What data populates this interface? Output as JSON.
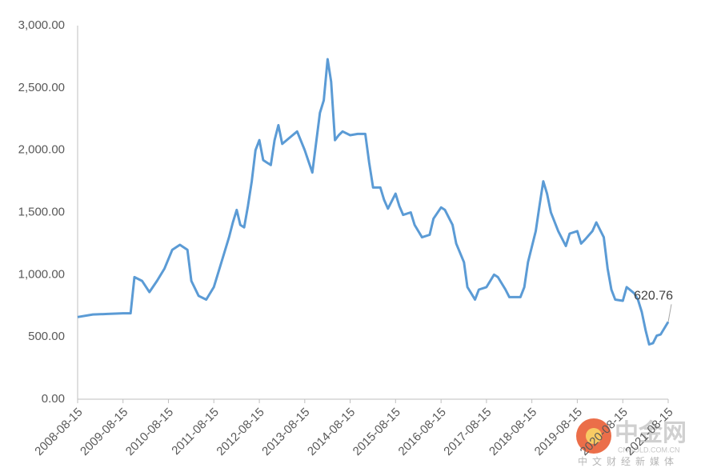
{
  "chart_data": {
    "type": "line",
    "x": [
      "2008-08-15",
      "2008-12-15",
      "2009-04-15",
      "2009-08-15",
      "2009-10-15",
      "2009-11-15",
      "2010-01-15",
      "2010-03-15",
      "2010-05-15",
      "2010-07-15",
      "2010-09-15",
      "2010-11-15",
      "2011-01-15",
      "2011-02-15",
      "2011-04-15",
      "2011-06-15",
      "2011-08-15",
      "2011-10-15",
      "2011-12-15",
      "2012-01-15",
      "2012-02-15",
      "2012-03-15",
      "2012-04-15",
      "2012-05-15",
      "2012-06-15",
      "2012-07-15",
      "2012-08-15",
      "2012-09-15",
      "2012-10-15",
      "2012-11-15",
      "2012-12-15",
      "2013-01-15",
      "2013-02-15",
      "2013-04-15",
      "2013-06-15",
      "2013-08-15",
      "2013-10-15",
      "2013-12-15",
      "2014-01-15",
      "2014-02-15",
      "2014-03-15",
      "2014-04-15",
      "2014-05-15",
      "2014-06-15",
      "2014-08-15",
      "2014-10-15",
      "2014-12-15",
      "2015-01-15",
      "2015-02-15",
      "2015-04-15",
      "2015-05-15",
      "2015-06-15",
      "2015-08-15",
      "2015-09-15",
      "2015-10-15",
      "2015-12-15",
      "2016-01-15",
      "2016-03-15",
      "2016-05-15",
      "2016-06-15",
      "2016-08-15",
      "2016-09-15",
      "2016-11-15",
      "2016-12-15",
      "2017-02-15",
      "2017-03-15",
      "2017-04-15",
      "2017-05-15",
      "2017-06-15",
      "2017-08-15",
      "2017-10-15",
      "2017-11-15",
      "2018-01-15",
      "2018-02-15",
      "2018-05-15",
      "2018-06-15",
      "2018-07-15",
      "2018-09-15",
      "2018-10-15",
      "2018-11-15",
      "2018-12-15",
      "2019-01-15",
      "2019-03-15",
      "2019-05-15",
      "2019-06-15",
      "2019-08-15",
      "2019-09-15",
      "2019-10-15",
      "2019-12-15",
      "2020-01-15",
      "2020-03-15",
      "2020-04-15",
      "2020-05-15",
      "2020-06-15",
      "2020-08-15",
      "2020-09-15",
      "2020-11-15",
      "2020-12-15",
      "2021-01-15",
      "2021-02-15",
      "2021-03-15",
      "2021-04-15",
      "2021-05-15",
      "2021-06-15",
      "2021-08-15"
    ],
    "series": [
      {
        "color": "#5b9bd5",
        "values": [
          660,
          680,
          685,
          690,
          690,
          980,
          950,
          860,
          950,
          1050,
          1200,
          1240,
          1200,
          950,
          830,
          800,
          900,
          1100,
          1300,
          1420,
          1520,
          1400,
          1380,
          1550,
          1750,
          2000,
          2080,
          1920,
          1900,
          1880,
          2080,
          2200,
          2050,
          2100,
          2150,
          2000,
          1820,
          2300,
          2400,
          2730,
          2550,
          2080,
          2120,
          2150,
          2120,
          2130,
          2130,
          1900,
          1700,
          1700,
          1600,
          1530,
          1650,
          1550,
          1480,
          1500,
          1400,
          1300,
          1320,
          1450,
          1540,
          1520,
          1400,
          1250,
          1100,
          900,
          850,
          800,
          880,
          900,
          1000,
          980,
          880,
          820,
          820,
          900,
          1100,
          1350,
          1550,
          1750,
          1650,
          1500,
          1350,
          1230,
          1330,
          1350,
          1250,
          1280,
          1350,
          1420,
          1300,
          1050,
          880,
          800,
          790,
          900,
          850,
          800,
          700,
          550,
          440,
          450,
          510,
          520,
          620.76
        ]
      }
    ],
    "label_last": true,
    "xlim": [
      "2008-08-15",
      "2021-08-15"
    ],
    "xticks": [
      "2008-08-15",
      "2009-08-15",
      "2010-08-15",
      "2011-08-15",
      "2012-08-15",
      "2013-08-15",
      "2014-08-15",
      "2015-08-15",
      "2016-08-15",
      "2017-08-15",
      "2018-08-15",
      "2019-08-15",
      "2020-08-15",
      "2021-08-15"
    ],
    "ylim": [
      0,
      3000
    ],
    "yticks": [
      {
        "value": 0,
        "label": "0.00"
      },
      {
        "value": 500,
        "label": "500.00"
      },
      {
        "value": 1000,
        "label": "1,000.00"
      },
      {
        "value": 1500,
        "label": "1,500.00"
      },
      {
        "value": 2000,
        "label": "2,000.00"
      },
      {
        "value": 2500,
        "label": "2,500.00"
      },
      {
        "value": 3000,
        "label": "3,000.00"
      }
    ],
    "grid": false
  },
  "watermark": {
    "logo": "中金网",
    "domain": "CNGOLD.COM.CN",
    "slogan": "中文财经新媒体"
  }
}
